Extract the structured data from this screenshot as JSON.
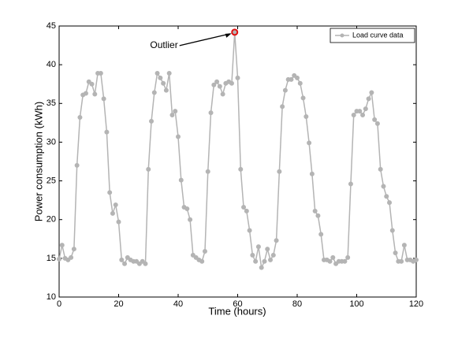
{
  "chart_data": {
    "type": "line",
    "xlabel": "Time (hours)",
    "ylabel": "Power consumption (kWh)",
    "x": [
      0,
      1,
      2,
      3,
      4,
      5,
      6,
      7,
      8,
      9,
      10,
      11,
      12,
      13,
      14,
      15,
      16,
      17,
      18,
      19,
      20,
      21,
      22,
      23,
      24,
      25,
      26,
      27,
      28,
      29,
      30,
      31,
      32,
      33,
      34,
      35,
      36,
      37,
      38,
      39,
      40,
      41,
      42,
      43,
      44,
      45,
      46,
      47,
      48,
      49,
      50,
      51,
      52,
      53,
      54,
      55,
      56,
      57,
      58,
      59,
      60,
      61,
      62,
      63,
      64,
      65,
      66,
      67,
      68,
      69,
      70,
      71,
      72,
      73,
      74,
      75,
      76,
      77,
      78,
      79,
      80,
      81,
      82,
      83,
      84,
      85,
      86,
      87,
      88,
      89,
      90,
      91,
      92,
      93,
      94,
      95,
      96,
      97,
      98,
      99,
      100,
      101,
      102,
      103,
      104,
      105,
      106,
      107,
      108,
      109,
      110,
      111,
      112,
      113,
      114,
      115,
      116,
      117,
      118,
      119,
      120
    ],
    "series": [
      {
        "name": "Load curve data",
        "color": "#b4b4b4",
        "values": [
          14.9,
          16.7,
          15.0,
          14.8,
          15.1,
          16.2,
          27.0,
          33.2,
          36.1,
          36.3,
          37.8,
          37.5,
          36.2,
          38.9,
          38.9,
          35.6,
          31.3,
          23.5,
          20.8,
          21.9,
          19.7,
          14.8,
          14.3,
          15.1,
          14.8,
          14.6,
          14.6,
          14.3,
          14.6,
          14.3,
          26.5,
          32.7,
          36.4,
          38.9,
          38.3,
          37.6,
          36.7,
          38.9,
          33.5,
          34.0,
          30.7,
          25.1,
          21.6,
          21.4,
          20.0,
          15.4,
          15.1,
          14.8,
          14.6,
          15.9,
          26.2,
          33.8,
          37.4,
          37.8,
          37.2,
          36.2,
          37.6,
          37.8,
          37.6,
          44.2,
          38.3,
          26.5,
          21.6,
          21.1,
          18.6,
          15.4,
          14.6,
          16.5,
          13.8,
          14.6,
          16.2,
          14.8,
          15.4,
          17.3,
          26.2,
          34.6,
          36.7,
          38.1,
          38.1,
          38.6,
          38.3,
          37.6,
          35.7,
          33.3,
          29.9,
          25.9,
          21.1,
          20.5,
          18.1,
          14.8,
          14.8,
          14.6,
          15.1,
          14.3,
          14.6,
          14.6,
          14.6,
          15.1,
          24.6,
          33.5,
          34.0,
          34.0,
          33.5,
          34.3,
          35.6,
          36.4,
          32.9,
          32.4,
          26.5,
          24.3,
          23.0,
          22.2,
          18.6,
          15.7,
          14.6,
          14.6,
          16.7,
          14.8,
          14.8,
          14.6,
          14.8
        ]
      }
    ],
    "annotations": [
      {
        "text": "Outlier",
        "x": 59,
        "y": 44.2,
        "color": "#e01010"
      }
    ],
    "xlim": [
      0,
      120
    ],
    "xticks": [
      0,
      20,
      40,
      60,
      80,
      100,
      120
    ],
    "ylim": [
      10,
      45
    ],
    "yticks": [
      10,
      15,
      20,
      25,
      30,
      35,
      40,
      45
    ],
    "grid": false,
    "legend": "upper right"
  }
}
